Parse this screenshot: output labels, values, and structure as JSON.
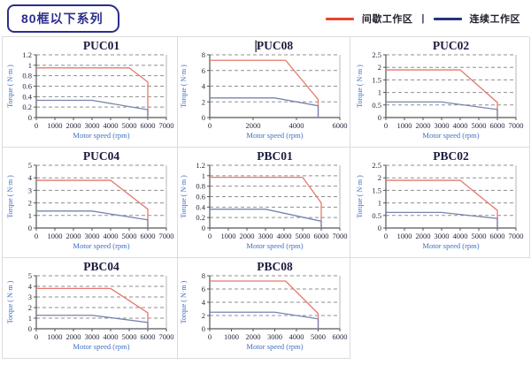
{
  "header": {
    "badge": "80框以下系列",
    "legend": {
      "items": [
        {
          "name": "intermittent-zone",
          "label": "间歇工作区",
          "color": "#e8432a"
        },
        {
          "name": "continuous-zone",
          "label": "连续工作区",
          "color": "#20377c"
        }
      ],
      "separator": "|"
    }
  },
  "colors": {
    "red_line": "#e5786c",
    "blue_line": "#7983ae",
    "grid_line": "#8f8f8f",
    "axis": "#55565a",
    "plot_right_border": "#b5b5b5",
    "tick_text": "#26263e",
    "title_text": "#1b1b3f",
    "axis_label_text": "#3e6fc0",
    "badge_navy": "#2b2e8c"
  },
  "chart_data": [
    {
      "type": "line",
      "title": "PUC01",
      "cursor": false,
      "xlabel": "Motor speed (rpm)",
      "ylabel": "Torque ( N·m )",
      "xlim": [
        0,
        7000
      ],
      "xticks": [
        0,
        1000,
        2000,
        3000,
        4000,
        5000,
        6000,
        7000
      ],
      "ylim": [
        0,
        1.2
      ],
      "yticks": [
        0,
        0.2,
        0.4,
        0.6,
        0.8,
        1,
        1.2
      ],
      "series": [
        {
          "name": "间歇工作区",
          "color": "#e5786c",
          "points": [
            [
              0,
              0.95
            ],
            [
              5000,
              0.95
            ],
            [
              6000,
              0.68
            ],
            [
              6000,
              0
            ]
          ]
        },
        {
          "name": "连续工作区",
          "color": "#7983ae",
          "points": [
            [
              0,
              0.33
            ],
            [
              3000,
              0.33
            ],
            [
              6000,
              0.15
            ],
            [
              6000,
              0
            ]
          ]
        }
      ]
    },
    {
      "type": "line",
      "title": "PUC08",
      "cursor": true,
      "xlabel": "Motor speed (rpm)",
      "ylabel": "Torque ( N·m )",
      "xlim": [
        0,
        6000
      ],
      "xticks": [
        0,
        2000,
        4000,
        6000
      ],
      "ylim": [
        0,
        8
      ],
      "yticks": [
        0,
        2,
        4,
        6,
        8
      ],
      "series": [
        {
          "name": "间歇工作区",
          "color": "#e5786c",
          "points": [
            [
              0,
              7.3
            ],
            [
              3500,
              7.3
            ],
            [
              5000,
              2.3
            ],
            [
              5000,
              0
            ]
          ]
        },
        {
          "name": "连续工作区",
          "color": "#7983ae",
          "points": [
            [
              0,
              2.5
            ],
            [
              3000,
              2.5
            ],
            [
              5000,
              1.5
            ],
            [
              5000,
              0
            ]
          ]
        }
      ]
    },
    {
      "type": "line",
      "title": "PUC02",
      "cursor": false,
      "xlabel": "Motor speed (rpm)",
      "ylabel": "Torque ( N·m )",
      "xlim": [
        0,
        7000
      ],
      "xticks": [
        0,
        1000,
        2000,
        3000,
        4000,
        5000,
        6000,
        7000
      ],
      "ylim": [
        0,
        2.5
      ],
      "yticks": [
        0,
        0.5,
        1,
        1.5,
        2,
        2.5
      ],
      "series": [
        {
          "name": "间歇工作区",
          "color": "#e5786c",
          "points": [
            [
              0,
              1.9
            ],
            [
              4000,
              1.9
            ],
            [
              6000,
              0.6
            ],
            [
              6000,
              0
            ]
          ]
        },
        {
          "name": "连续工作区",
          "color": "#7983ae",
          "points": [
            [
              0,
              0.62
            ],
            [
              3000,
              0.62
            ],
            [
              6000,
              0.32
            ],
            [
              6000,
              0
            ]
          ]
        }
      ]
    },
    {
      "type": "line",
      "title": "PUC04",
      "cursor": false,
      "xlabel": "Motor speed (rpm)",
      "ylabel": "Torque ( N·m )",
      "xlim": [
        0,
        7000
      ],
      "xticks": [
        0,
        1000,
        2000,
        3000,
        4000,
        5000,
        6000,
        7000
      ],
      "ylim": [
        0,
        5
      ],
      "yticks": [
        0,
        1,
        2,
        3,
        4,
        5
      ],
      "series": [
        {
          "name": "间歇工作区",
          "color": "#e5786c",
          "points": [
            [
              0,
              3.8
            ],
            [
              4000,
              3.8
            ],
            [
              6000,
              1.5
            ],
            [
              6000,
              0
            ]
          ]
        },
        {
          "name": "连续工作区",
          "color": "#7983ae",
          "points": [
            [
              0,
              1.35
            ],
            [
              3000,
              1.35
            ],
            [
              6000,
              0.65
            ],
            [
              6000,
              0
            ]
          ]
        }
      ]
    },
    {
      "type": "line",
      "title": "PBC01",
      "cursor": false,
      "xlabel": "Motor speed (rpm)",
      "ylabel": "Torque ( N·m )",
      "xlim": [
        0,
        7000
      ],
      "xticks": [
        0,
        1000,
        2000,
        3000,
        4000,
        5000,
        6000,
        7000
      ],
      "ylim": [
        0,
        1.2
      ],
      "yticks": [
        0,
        0.2,
        0.4,
        0.6,
        0.8,
        1,
        1.2
      ],
      "series": [
        {
          "name": "间歇工作区",
          "color": "#e5786c",
          "points": [
            [
              0,
              0.97
            ],
            [
              5000,
              0.97
            ],
            [
              6000,
              0.48
            ],
            [
              6000,
              0
            ]
          ]
        },
        {
          "name": "连续工作区",
          "color": "#7983ae",
          "points": [
            [
              0,
              0.36
            ],
            [
              3000,
              0.36
            ],
            [
              6000,
              0.13
            ],
            [
              6000,
              0
            ]
          ]
        }
      ]
    },
    {
      "type": "line",
      "title": "PBC02",
      "cursor": false,
      "xlabel": "Motor speed (rpm)",
      "ylabel": "Torque ( N·m )",
      "xlim": [
        0,
        7000
      ],
      "xticks": [
        0,
        1000,
        2000,
        3000,
        4000,
        5000,
        6000,
        7000
      ],
      "ylim": [
        0,
        2.5
      ],
      "yticks": [
        0,
        0.5,
        1,
        1.5,
        2,
        2.5
      ],
      "series": [
        {
          "name": "间歇工作区",
          "color": "#e5786c",
          "points": [
            [
              0,
              1.9
            ],
            [
              4000,
              1.9
            ],
            [
              6000,
              0.7
            ],
            [
              6000,
              0
            ]
          ]
        },
        {
          "name": "连续工作区",
          "color": "#7983ae",
          "points": [
            [
              0,
              0.62
            ],
            [
              3000,
              0.62
            ],
            [
              6000,
              0.38
            ],
            [
              6000,
              0
            ]
          ]
        }
      ]
    },
    {
      "type": "line",
      "title": "PBC04",
      "cursor": false,
      "xlabel": "Motor speed (rpm)",
      "ylabel": "Torque ( N·m )",
      "xlim": [
        0,
        7000
      ],
      "xticks": [
        0,
        1000,
        2000,
        3000,
        4000,
        5000,
        6000,
        7000
      ],
      "ylim": [
        0,
        5
      ],
      "yticks": [
        0,
        1,
        2,
        3,
        4,
        5
      ],
      "series": [
        {
          "name": "间歇工作区",
          "color": "#e5786c",
          "points": [
            [
              0,
              3.8
            ],
            [
              4000,
              3.8
            ],
            [
              6000,
              1.5
            ],
            [
              6000,
              0
            ]
          ]
        },
        {
          "name": "连续工作区",
          "color": "#7983ae",
          "points": [
            [
              0,
              1.27
            ],
            [
              3000,
              1.27
            ],
            [
              6000,
              0.6
            ],
            [
              6000,
              0
            ]
          ]
        }
      ]
    },
    {
      "type": "line",
      "title": "PBC08",
      "cursor": false,
      "xlabel": "Motor speed (rpm)",
      "ylabel": "Torque ( N·m )",
      "xlim": [
        0,
        6000
      ],
      "xticks": [
        0,
        1000,
        2000,
        3000,
        4000,
        5000,
        6000
      ],
      "ylim": [
        0,
        8
      ],
      "yticks": [
        0,
        2,
        4,
        6,
        8
      ],
      "series": [
        {
          "name": "间歇工作区",
          "color": "#e5786c",
          "points": [
            [
              0,
              7.2
            ],
            [
              3500,
              7.2
            ],
            [
              5000,
              2.3
            ],
            [
              5000,
              0
            ]
          ]
        },
        {
          "name": "连续工作区",
          "color": "#7983ae",
          "points": [
            [
              0,
              2.5
            ],
            [
              3000,
              2.5
            ],
            [
              5000,
              1.5
            ],
            [
              5000,
              0
            ]
          ]
        }
      ]
    }
  ]
}
